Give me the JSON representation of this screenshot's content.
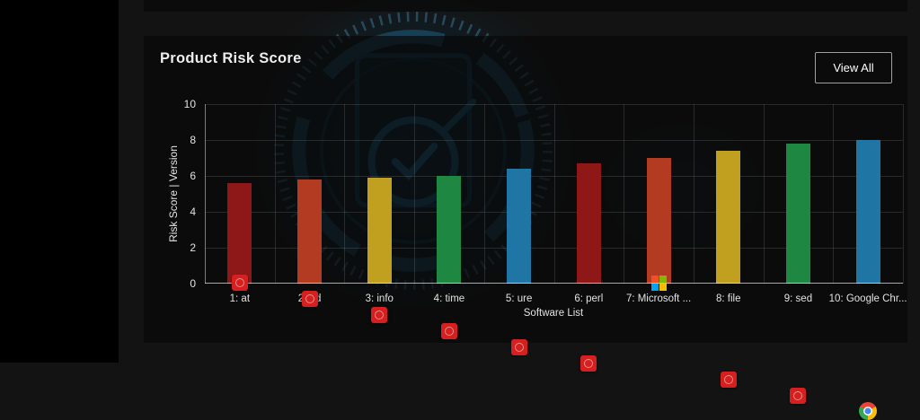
{
  "card": {
    "title": "Product Risk Score",
    "view_all_label": "View All"
  },
  "chart_data": {
    "type": "bar",
    "title": "Product Risk Score",
    "xlabel": "Software List",
    "ylabel": "Risk Score | Version",
    "ylim": [
      0,
      10
    ],
    "yticks": [
      0,
      2,
      4,
      6,
      8,
      10
    ],
    "grid": true,
    "legend": false,
    "categories": [
      "1: at",
      "2: ed",
      "3: info",
      "4: time",
      "5: ure",
      "6: perl",
      "7: Microsoft ...",
      "8: file",
      "9: sed",
      "10: Google Chr..."
    ],
    "values": [
      5.6,
      5.8,
      5.9,
      6.0,
      6.4,
      6.7,
      7.0,
      7.4,
      7.8,
      8.0
    ],
    "bar_colors": [
      "#8e1818",
      "#b23b22",
      "#c2a01f",
      "#1e8742",
      "#1f76a4",
      "#8e1818",
      "#b23b22",
      "#c2a01f",
      "#1e8742",
      "#1f76a4"
    ],
    "icons": [
      "generic-software-icon",
      "generic-software-icon",
      "generic-software-icon",
      "generic-software-icon",
      "generic-software-icon",
      "generic-software-icon",
      "microsoft-logo-icon",
      "generic-software-icon",
      "generic-software-icon",
      "chrome-logo-icon"
    ],
    "icon_colors": {
      "generic": "#d61f1f",
      "microsoft": [
        "#f25022",
        "#7fba00",
        "#00a4ef",
        "#ffb900"
      ],
      "chrome": {
        "red": "#ea4335",
        "yellow": "#fbbc05",
        "green": "#34a853",
        "blue": "#4285f4",
        "ring": "#ffffff"
      }
    }
  },
  "colors": {
    "page_bg": "#131313",
    "sidebar_bg": "#000000",
    "card_bg": "rgba(9,9,9,0.72)",
    "decoration_blue": "#2f6b88",
    "button_border": "#a0a0a0",
    "text": "#ededed"
  }
}
